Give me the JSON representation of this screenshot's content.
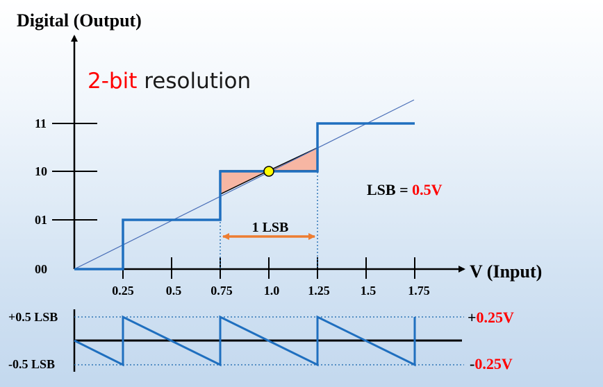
{
  "diagram": {
    "y_axis_title": "Digital (Output)",
    "subtitle_highlight": "2-bit",
    "subtitle_rest": " resolution",
    "x_axis_title": "V (Input)",
    "lsb_label_prefix": "LSB = ",
    "lsb_label_value": "0.5V",
    "span_label": "1 LSB",
    "y_ticks": [
      "00",
      "01",
      "10",
      "11"
    ],
    "x_ticks": [
      "0.25",
      "0.5",
      "0.75",
      "1.0",
      "1.25",
      "1.5",
      "1.75"
    ],
    "error_plot": {
      "left_top_label": "+0.5 LSB",
      "left_bottom_label": "-0.5 LSB",
      "right_top_sign": "+",
      "right_top_value": "0.25V",
      "right_bottom_sign": "-",
      "right_bottom_value": "0.25V"
    },
    "colors": {
      "accent_red": "#ff0000",
      "step_blue": "#1f6fbf",
      "ideal_line": "#4a6fb8",
      "error_fill": "#f7b6a3",
      "span_arrow": "#ed7d31",
      "center_point": "#ffff00",
      "dotted_guide": "#2e75b6"
    }
  }
}
